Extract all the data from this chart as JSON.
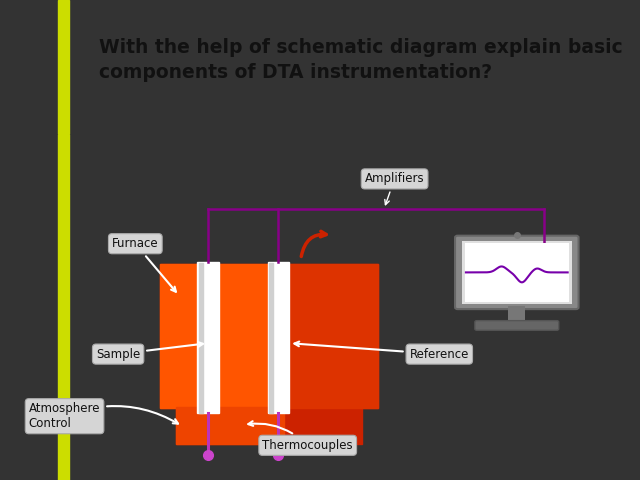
{
  "bg_color": "#333333",
  "header_bg": "#ffffff",
  "header_text": "With the help of schematic diagram explain basic\ncomponents of DTA instrumentation?",
  "yellow_bar_color": "#ccdd00",
  "label_bg": "#d5d5d5",
  "label_fg": "#111111",
  "thermocouple_line_color": "#bb33bb",
  "amplifier_line_color": "#880088",
  "labels": {
    "furnace": "Furnace",
    "sample": "Sample",
    "reference": "Reference",
    "thermocouples": "Thermocouples",
    "atmosphere": "Atmosphere\nControl",
    "amplifiers": "Amplifiers"
  },
  "figure_size": [
    6.4,
    4.8
  ],
  "dpi": 100
}
